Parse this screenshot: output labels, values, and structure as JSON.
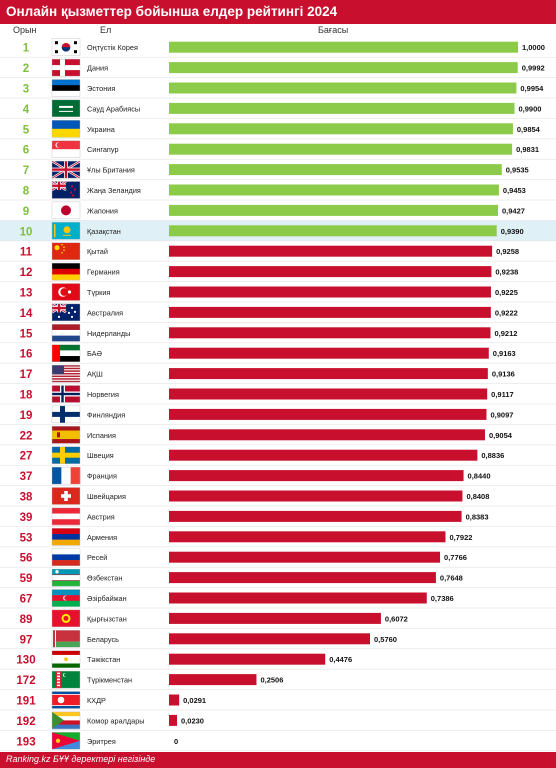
{
  "title": "Онлайн қызметтер бойынша елдер рейтингі 2024",
  "headers": {
    "rank": "Орын",
    "country": "Ел",
    "value": "Бағасы"
  },
  "footer": "Ranking.kz БҰҰ деректері негізінде",
  "colors": {
    "red": "#c8102e",
    "green": "#8ccb4a",
    "green_text": "#7fbf3f",
    "highlight": "#dff0f7"
  },
  "highlight_country": "Қазақстан",
  "chart_data": {
    "type": "bar",
    "orientation": "horizontal",
    "xlim": [
      0,
      1
    ],
    "ranks": [
      1,
      2,
      3,
      4,
      5,
      6,
      7,
      8,
      9,
      10,
      11,
      12,
      13,
      14,
      15,
      16,
      17,
      18,
      19,
      22,
      27,
      37,
      38,
      39,
      53,
      56,
      59,
      67,
      89,
      97,
      130,
      172,
      191,
      192,
      193
    ],
    "categories": [
      "Оңтүстік Корея",
      "Дания",
      "Эстония",
      "Сауд Арабиясы",
      "Украина",
      "Сингапур",
      "Ұлы Британия",
      "Жаңа Зеландия",
      "Жапония",
      "Қазақстан",
      "Қытай",
      "Германия",
      "Түркия",
      "Австралия",
      "Нидерланды",
      "БАӘ",
      "АҚШ",
      "Норвегия",
      "Финляндия",
      "Испания",
      "Швеция",
      "Франция",
      "Швейцария",
      "Австрия",
      "Армения",
      "Ресей",
      "Өзбекстан",
      "Әзірбайжан",
      "Қырғызстан",
      "Беларусь",
      "Тәжікстан",
      "Түрікменстан",
      "КХДР",
      "Комор аралдары",
      "Эритрея"
    ],
    "values": [
      1.0,
      0.9992,
      0.9954,
      0.99,
      0.9854,
      0.9831,
      0.9535,
      0.9453,
      0.9427,
      0.939,
      0.9258,
      0.9238,
      0.9225,
      0.9222,
      0.9212,
      0.9163,
      0.9136,
      0.9117,
      0.9097,
      0.9054,
      0.8836,
      0.844,
      0.8408,
      0.8383,
      0.7922,
      0.7766,
      0.7648,
      0.7386,
      0.6072,
      0.576,
      0.4476,
      0.2506,
      0.0291,
      0.023,
      0
    ],
    "value_labels": [
      "1,0000",
      "0,9992",
      "0,9954",
      "0,9900",
      "0,9854",
      "0,9831",
      "0,9535",
      "0,9453",
      "0,9427",
      "0,9390",
      "0,9258",
      "0,9238",
      "0,9225",
      "0,9222",
      "0,9212",
      "0,9163",
      "0,9136",
      "0,9117",
      "0,9097",
      "0,9054",
      "0,8836",
      "0,8440",
      "0,8408",
      "0,8383",
      "0,7922",
      "0,7766",
      "0,7648",
      "0,7386",
      "0,6072",
      "0,5760",
      "0,4476",
      "0,2506",
      "0,0291",
      "0,0230",
      "0"
    ],
    "bar_colors_by_rank": "ranks 1–10 green, others red"
  }
}
